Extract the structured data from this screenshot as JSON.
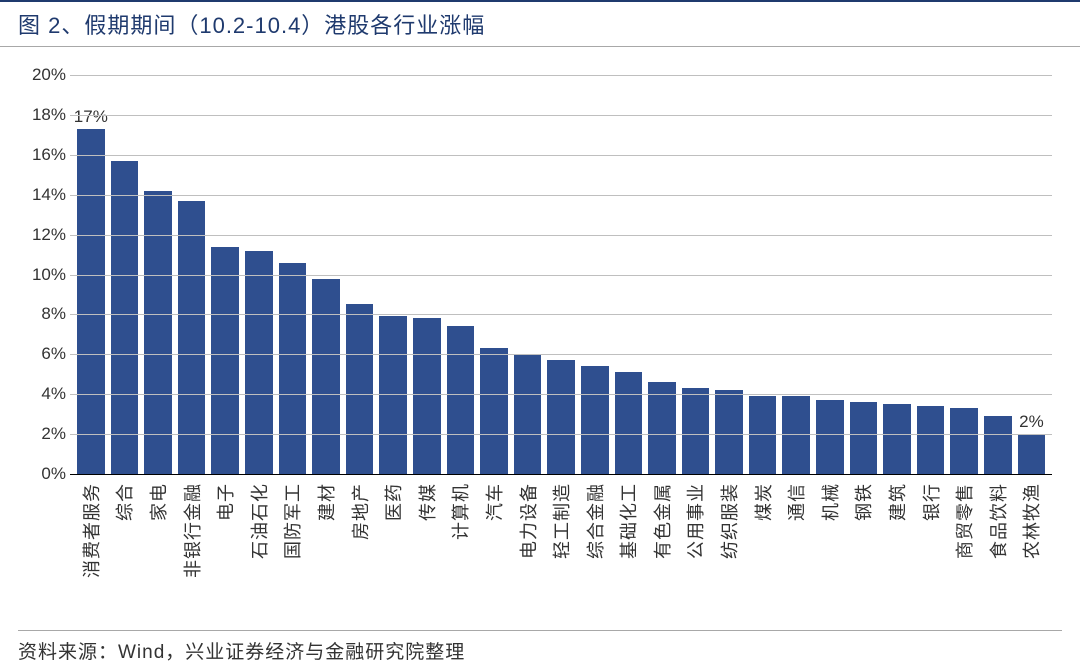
{
  "title": "图 2、假期期间（10.2-10.4）港股各行业涨幅",
  "source": "资料来源：Wind，兴业证券经济与金融研究院整理",
  "chart": {
    "type": "bar",
    "y_unit": "%",
    "ylim": [
      0,
      20
    ],
    "ytick_step": 2,
    "yticks": [
      0,
      2,
      4,
      6,
      8,
      10,
      12,
      14,
      16,
      18,
      20
    ],
    "bar_color": "#2f4f8f",
    "grid_color": "#bfbfbf",
    "axis_color": "#000000",
    "background_color": "#ffffff",
    "title_color": "#1f3a6e",
    "title_fontsize": 22,
    "tick_fontsize": 17,
    "xlabel_fontsize": 18,
    "bar_width": 0.72,
    "categories": [
      "消费者服务",
      "综合",
      "家电",
      "非银行金融",
      "电子",
      "石油石化",
      "国防军工",
      "建材",
      "房地产",
      "医药",
      "传媒",
      "计算机",
      "汽车",
      "电力设备",
      "轻工制造",
      "综合金融",
      "基础化工",
      "有色金属",
      "公用事业",
      "纺织服装",
      "煤炭",
      "通信",
      "机械",
      "钢铁",
      "建筑",
      "银行",
      "商贸零售",
      "食品饮料",
      "农林牧渔"
    ],
    "values": [
      17.3,
      15.7,
      14.2,
      13.7,
      11.4,
      11.2,
      10.6,
      9.8,
      8.5,
      7.9,
      7.8,
      7.4,
      6.3,
      6.0,
      5.7,
      5.4,
      5.1,
      4.6,
      4.3,
      4.2,
      3.9,
      3.9,
      3.7,
      3.6,
      3.5,
      3.4,
      3.3,
      2.9,
      2.0
    ],
    "annotations": [
      {
        "index": 0,
        "text": "17%"
      },
      {
        "index": 28,
        "text": "2%"
      }
    ]
  }
}
